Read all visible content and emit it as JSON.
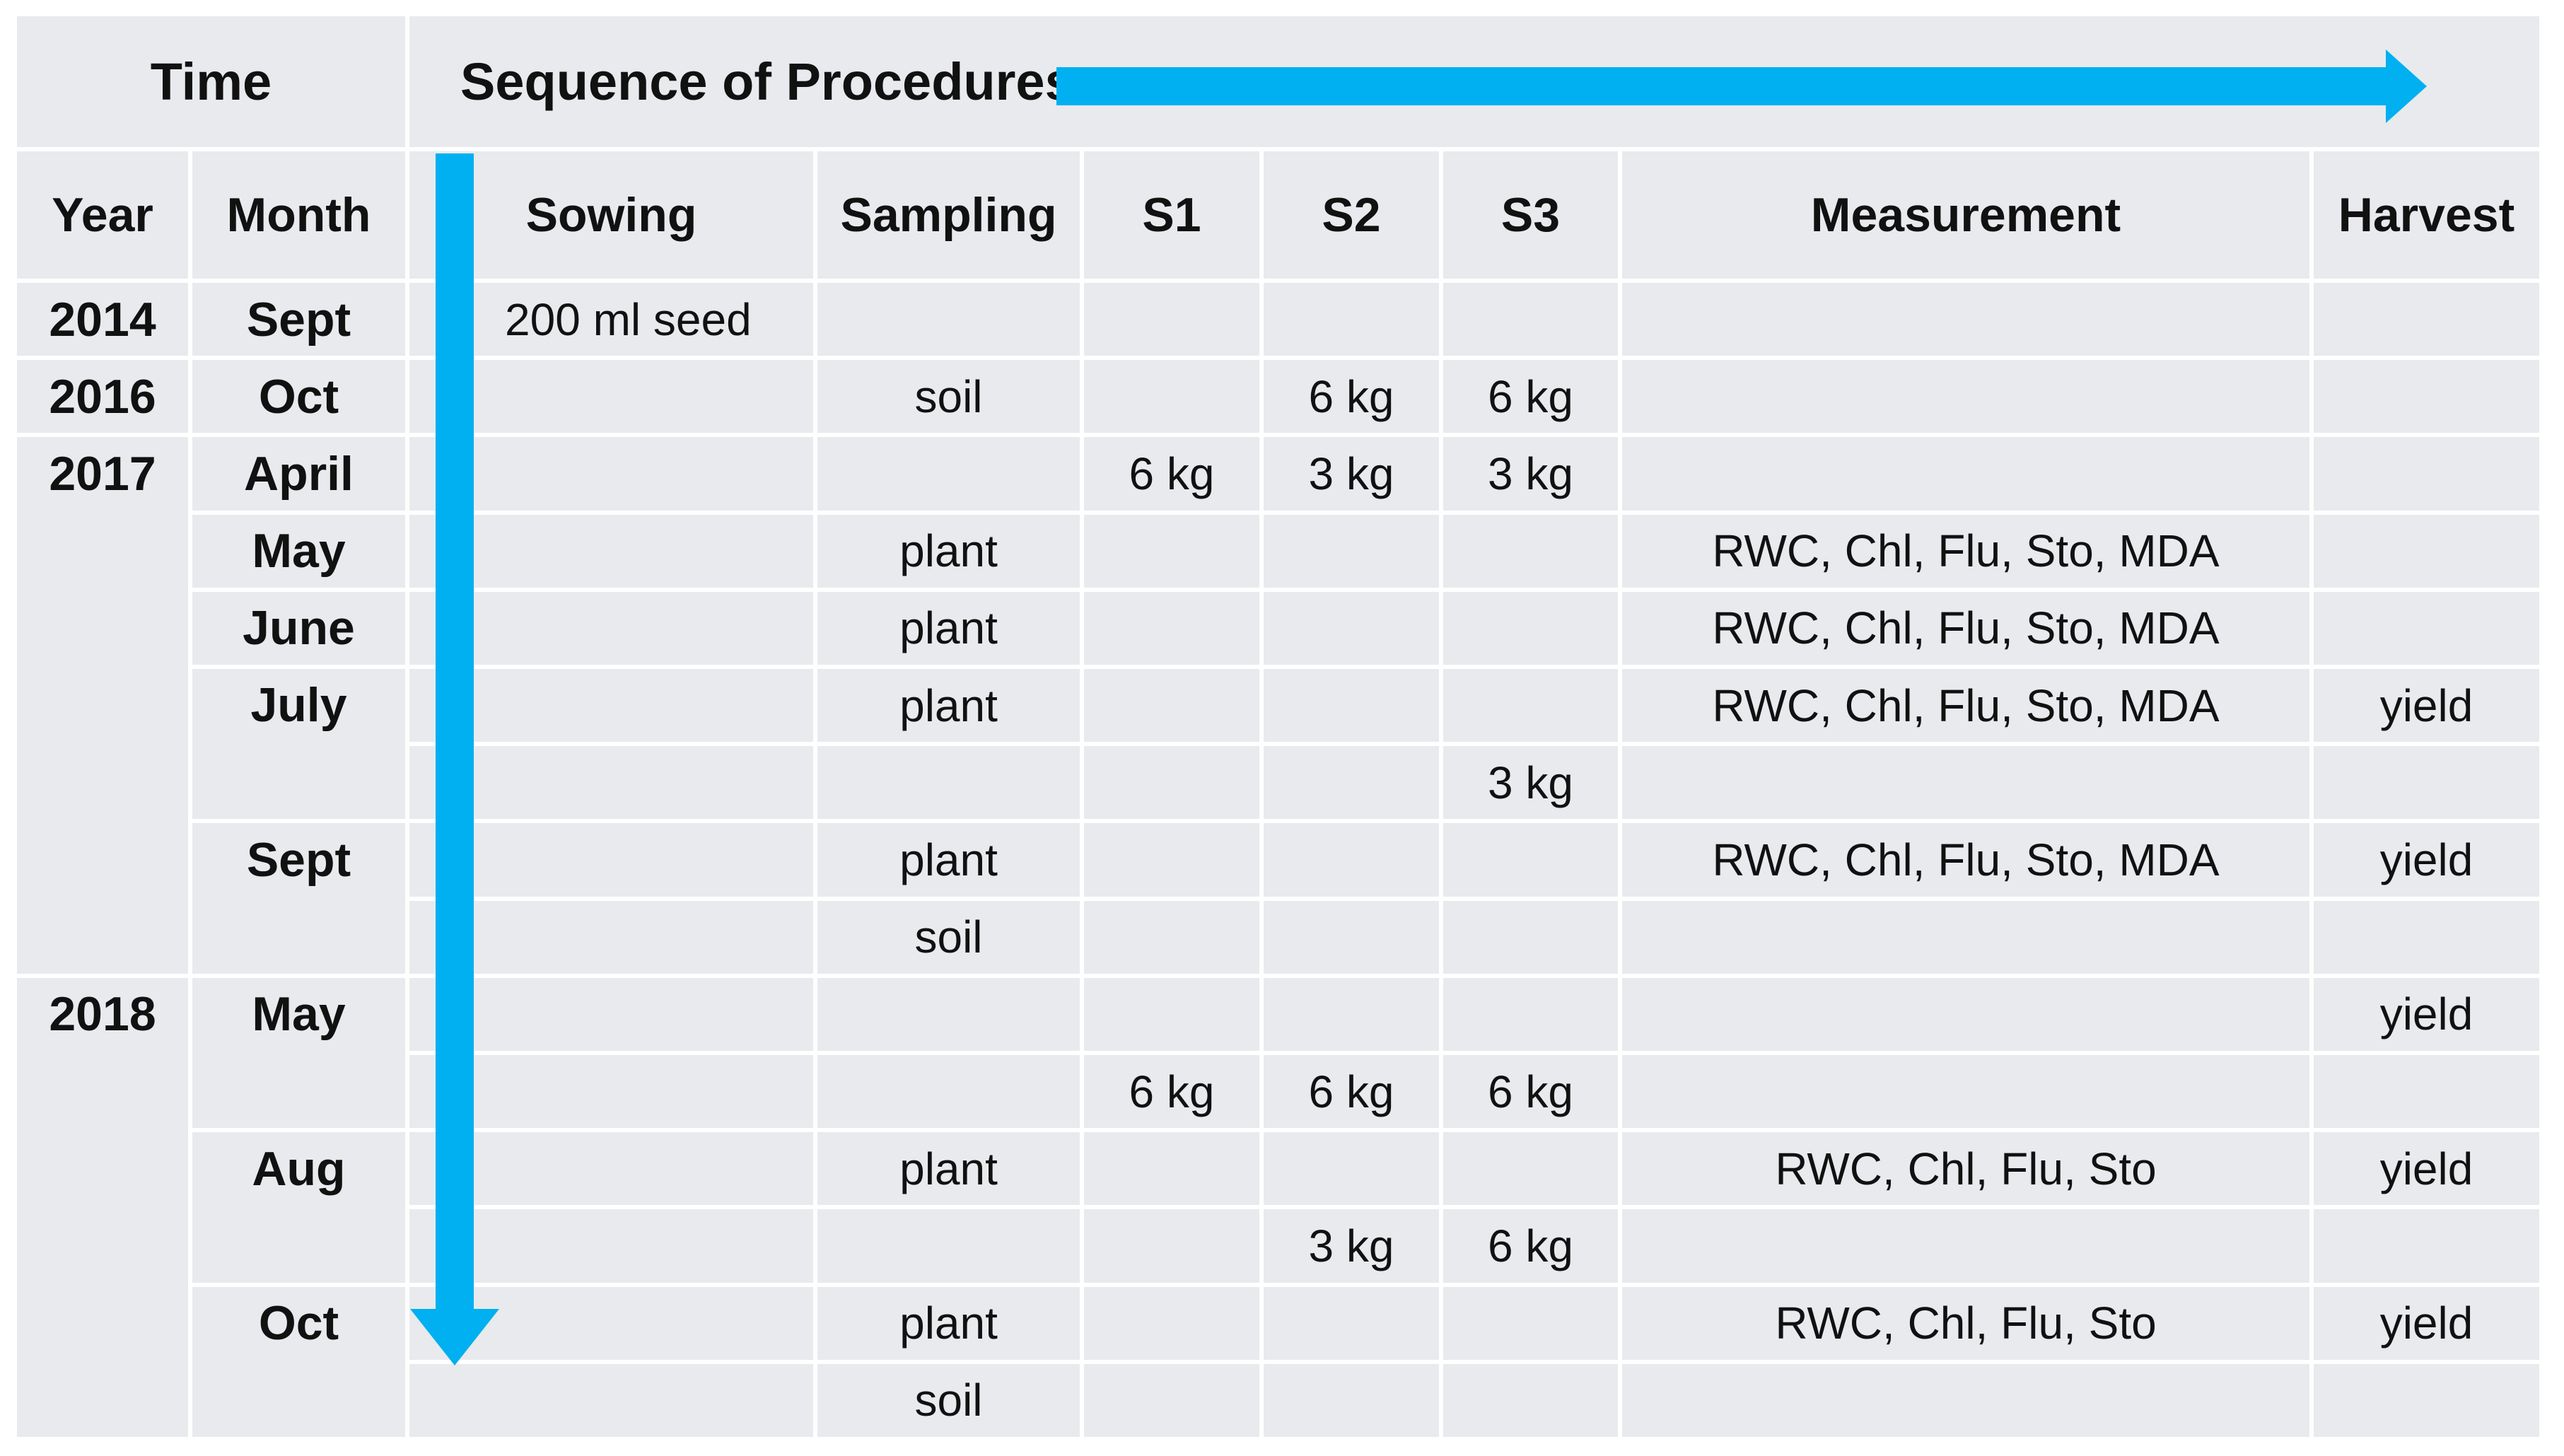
{
  "colors": {
    "arrow": "#00b0f0",
    "cellbg": "#e8eaed",
    "grid": "#ffffff",
    "text": "#111111"
  },
  "header": {
    "time_label": "Time",
    "sequence_label": "Sequence of Procedures"
  },
  "columns": [
    "Year",
    "Month",
    "Sowing",
    "Sampling",
    "S1",
    "S2",
    "S3",
    "Measurement",
    "Harvest"
  ],
  "icons": {
    "right_arrow": "timeline-arrow-right",
    "down_arrow": "timeline-arrow-down"
  },
  "rows": [
    {
      "y": "2014",
      "m": "Sept",
      "sow": "200 ml seed"
    },
    {
      "y": "2016",
      "m": "Oct",
      "sam": "soil",
      "s2": "6 kg",
      "s3": "6 kg"
    },
    {
      "y": "2017",
      "m": "April",
      "s1": "6 kg",
      "s2": "3 kg",
      "s3": "3 kg"
    },
    {
      "m": "May",
      "sam": "plant",
      "me": "RWC, Chl, Flu, Sto, MDA"
    },
    {
      "m": "June",
      "sam": "plant",
      "me": "RWC, Chl, Flu, Sto, MDA"
    },
    {
      "m": "July",
      "sam": "plant",
      "me": "RWC, Chl, Flu, Sto, MDA",
      "h": "yield"
    },
    {
      "s3": "3 kg"
    },
    {
      "m": "Sept",
      "sam": "plant",
      "me": "RWC, Chl, Flu, Sto, MDA",
      "h": "yield"
    },
    {
      "sam": "soil"
    },
    {
      "y": "2018",
      "m": "May",
      "h": "yield"
    },
    {
      "s1": "6 kg",
      "s2": "6 kg",
      "s3": "6 kg"
    },
    {
      "m": "Aug",
      "sam": "plant",
      "me": "RWC, Chl, Flu, Sto",
      "h": "yield"
    },
    {
      "s2": "3 kg",
      "s3": "6 kg"
    },
    {
      "m": "Oct",
      "sam": "plant",
      "me": "RWC, Chl, Flu, Sto",
      "h": "yield"
    },
    {
      "sam": "soil"
    }
  ]
}
